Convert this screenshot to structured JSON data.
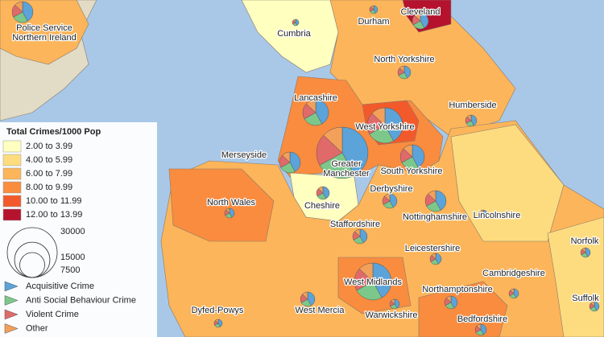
{
  "map": {
    "regions": [
      [
        "Police Service",
        "Northern Ireland"
      ],
      [
        "Cleveland"
      ],
      [
        "Durham"
      ],
      [
        "Cumbria"
      ],
      [
        "North Yorkshire"
      ],
      [
        "Humberside"
      ],
      [
        "Lancashire"
      ],
      [
        "West Yorkshire"
      ],
      [
        "Merseyside"
      ],
      [
        "Greater",
        "Manchester"
      ],
      [
        "South Yorkshire"
      ],
      [
        "North Wales"
      ],
      [
        "Cheshire"
      ],
      [
        "Derbyshire"
      ],
      [
        "Nottinghamshire"
      ],
      [
        "Lincolnshire"
      ],
      [
        "Staffordshire"
      ],
      [
        "Leicestershire"
      ],
      [
        "Norfolk"
      ],
      [
        "Cambridgeshire"
      ],
      [
        "West Midlands"
      ],
      [
        "Northamptonshire"
      ],
      [
        "Suffolk"
      ],
      [
        "Dyfed-Powys"
      ],
      [
        "West Mercia"
      ],
      [
        "Warwickshire"
      ],
      [
        "Bedfordshire"
      ]
    ],
    "legend": {
      "title": "Total Crimes/1000 Pop",
      "classes": [
        {
          "label": "2.00 to 3.99",
          "color": "#ffffc0"
        },
        {
          "label": "4.00 to 5.99",
          "color": "#fddc80"
        },
        {
          "label": "6.00 to 7.99",
          "color": "#fcb55a"
        },
        {
          "label": "8.00 to 9.99",
          "color": "#f98c3f"
        },
        {
          "label": "10.00 to 11.99",
          "color": "#f25a2c"
        },
        {
          "label": "12.00 to 13.99",
          "color": "#b5122e"
        }
      ],
      "sizes": [
        30000,
        15000,
        7500
      ],
      "pie_items": [
        {
          "label": "Acquisitive Crime",
          "color": "#5ba3d9"
        },
        {
          "label": "Anti Social Behaviour Crime",
          "color": "#7cc88a"
        },
        {
          "label": "Violent Crime",
          "color": "#e06a6a"
        },
        {
          "label": "Other",
          "color": "#f2a05a"
        }
      ]
    }
  }
}
